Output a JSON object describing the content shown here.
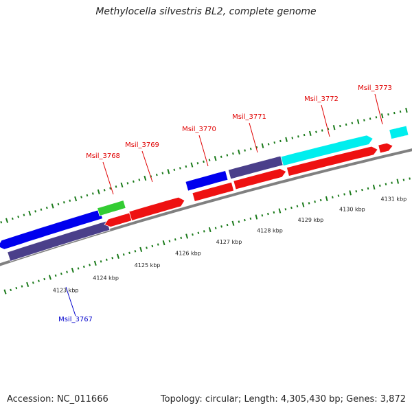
{
  "title": "Methylocella silvestris BL2, complete genome",
  "footer": {
    "accession": "Accession: NC_011666",
    "topology": "Topology: circular; Length: 4,305,430 bp; Genes: 3,872"
  },
  "colors": {
    "backbone": "#808080",
    "tick": "#1a7a1a",
    "label_upper": "#e00000",
    "label_lower": "#0000cc"
  },
  "tick_labels": [
    "4123 kbp",
    "4124 kbp",
    "4125 kbp",
    "4126 kbp",
    "4127 kbp",
    "4128 kbp",
    "4129 kbp",
    "4130 kbp",
    "4131 kbp"
  ],
  "gene_labels": [
    {
      "text": "Msil_3767",
      "color": "#0000cc"
    },
    {
      "text": "Msil_3768",
      "color": "#e00000"
    },
    {
      "text": "Msil_3769",
      "color": "#e00000"
    },
    {
      "text": "Msil_3770",
      "color": "#e00000"
    },
    {
      "text": "Msil_3771",
      "color": "#e00000"
    },
    {
      "text": "Msil_3772",
      "color": "#e00000"
    },
    {
      "text": "Msil_3773",
      "color": "#e00000"
    }
  ],
  "features": [
    {
      "name": "gene-3767-outer",
      "color": "#0000ee",
      "strand": "-"
    },
    {
      "name": "gene-3767-inner",
      "color": "#4a3f8a",
      "strand": "none"
    },
    {
      "name": "gene-3768-outer",
      "color": "#33cc33",
      "strand": "none"
    },
    {
      "name": "gene-3768-inner",
      "color": "#ee1111",
      "strand": "-"
    },
    {
      "name": "gene-3769",
      "color": "#ee1111",
      "strand": "+"
    },
    {
      "name": "gene-3770-outer",
      "color": "#0000ee",
      "strand": "none"
    },
    {
      "name": "gene-3770-inner",
      "color": "#ee1111",
      "strand": "none"
    },
    {
      "name": "gene-3771-outer",
      "color": "#4a3f8a",
      "strand": "none"
    },
    {
      "name": "gene-3771-inner",
      "color": "#ee1111",
      "strand": "+"
    },
    {
      "name": "gene-3772-outer",
      "color": "#00eeee",
      "strand": "+"
    },
    {
      "name": "gene-3772-inner",
      "color": "#ee1111",
      "strand": "+"
    },
    {
      "name": "gene-3773-outer",
      "color": "#00eeee",
      "strand": "none"
    },
    {
      "name": "gene-3773-inner",
      "color": "#ee1111",
      "strand": "+"
    }
  ]
}
